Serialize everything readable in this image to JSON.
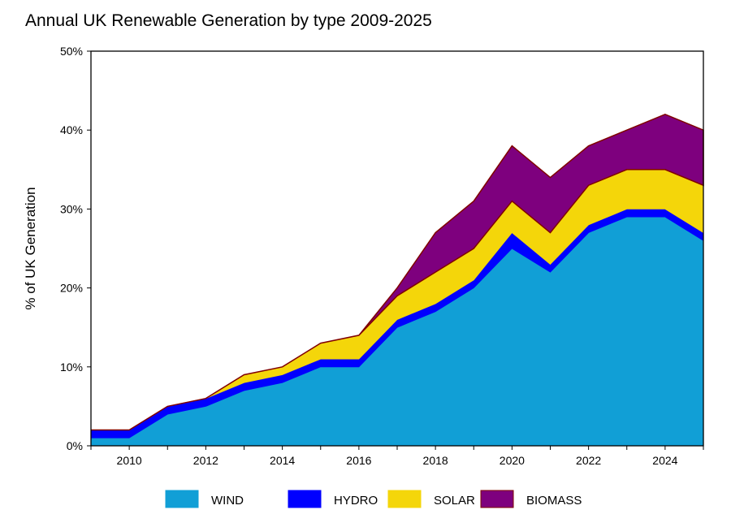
{
  "chart_data": {
    "type": "area",
    "stacked": true,
    "title": "Annual UK Renewable Generation by type 2009-2025",
    "xlabel": "",
    "ylabel": "% of UK Generation",
    "xlim": [
      2009,
      2025
    ],
    "ylim": [
      0,
      50
    ],
    "x_ticks": [
      "2010",
      "2012",
      "2014",
      "2016",
      "2018",
      "2020",
      "2022",
      "2024"
    ],
    "y_ticks": [
      "0%",
      "10%",
      "20%",
      "30%",
      "40%",
      "50%"
    ],
    "grid": false,
    "legend_position": "bottom",
    "x": [
      2009,
      2010,
      2011,
      2012,
      2013,
      2014,
      2015,
      2016,
      2017,
      2018,
      2019,
      2020,
      2021,
      2022,
      2023,
      2024,
      2025
    ],
    "series": [
      {
        "name": "WIND",
        "color": "#119fd6",
        "values": [
          1,
          1,
          4,
          5,
          7,
          8,
          10,
          10,
          15,
          17,
          20,
          25,
          22,
          27,
          29,
          29,
          26
        ]
      },
      {
        "name": "HYDRO",
        "color": "#0000ff",
        "values": [
          1,
          1,
          1,
          1,
          1,
          1,
          1,
          1,
          1,
          1,
          1,
          2,
          1,
          1,
          1,
          1,
          1
        ]
      },
      {
        "name": "SOLAR",
        "color": "#f4d60a",
        "values": [
          0,
          0,
          0,
          0,
          1,
          1,
          2,
          3,
          3,
          4,
          4,
          4,
          4,
          5,
          5,
          5,
          6
        ]
      },
      {
        "name": "BIOMASS",
        "color": "#7e007e",
        "values": [
          0,
          0,
          0,
          0,
          0,
          0,
          0,
          0,
          1,
          5,
          6,
          7,
          7,
          5,
          5,
          7,
          7
        ]
      }
    ]
  }
}
